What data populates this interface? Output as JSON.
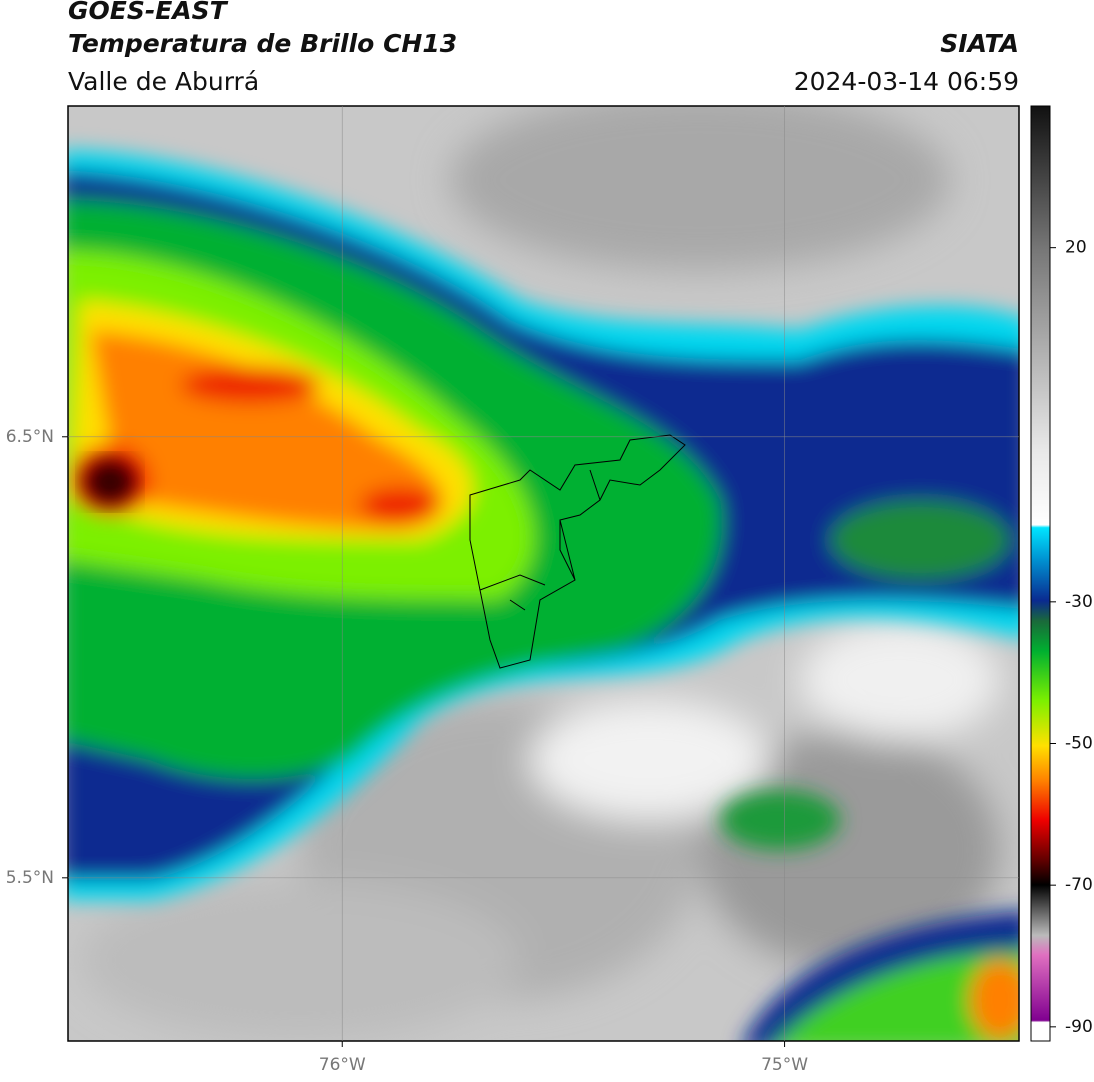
{
  "header": {
    "satellite": "GOES-EAST",
    "product": "Temperatura de Brillo CH13",
    "region": "Valle de Aburrá",
    "source": "SIATA",
    "datetime": "2024-03-14 06:59"
  },
  "map": {
    "xlim": [
      -76.62,
      -74.47
    ],
    "ylim": [
      5.13,
      7.25
    ],
    "xticks": [
      {
        "value": -76,
        "label": "76°W"
      },
      {
        "value": -75,
        "label": "75°W"
      }
    ],
    "yticks": [
      {
        "value": 6.5,
        "label": "6.5°N"
      },
      {
        "value": 5.5,
        "label": "5.5°N"
      }
    ],
    "grid": true
  },
  "colorbar": {
    "lim": [
      -92,
      40
    ],
    "ticks": [
      20,
      -30,
      -50,
      -70,
      -90
    ]
  }
}
